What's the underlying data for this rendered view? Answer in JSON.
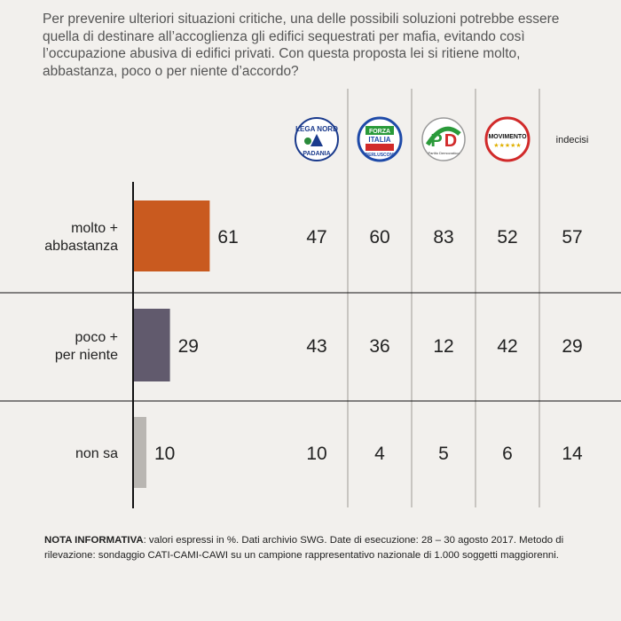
{
  "question": "Per prevenire ulteriori situazioni critiche, una delle possibili soluzioni potrebbe essere quella di destinare all’accoglienza gli edifici sequestrati per mafia, evitando così l’occupazione abusiva di edifici privati. Con questa proposta lei si ritiene molto, abbastanza, poco o per niente d’accordo?",
  "chart_data": {
    "type": "bar",
    "orientation": "horizontal",
    "categories": [
      "molto + abbastanza",
      "poco + per niente",
      "non sa"
    ],
    "values": [
      61,
      29,
      10
    ],
    "bar_colors": [
      "#c95a1f",
      "#615a6d",
      "#b9b6b2"
    ],
    "table": {
      "columns": [
        {
          "party": "Lega Nord",
          "logo": "lega-nord-logo",
          "logo_text": [
            "LEGA NORD",
            "PADANIA"
          ]
        },
        {
          "party": "Forza Italia",
          "logo": "forza-italia-logo",
          "logo_text": [
            "FORZA",
            "ITALIA",
            "BERLUSCONI"
          ]
        },
        {
          "party": "Partito Democratico",
          "logo": "pd-logo",
          "logo_text": [
            "PD",
            "Partito Democratico"
          ]
        },
        {
          "party": "Movimento 5 Stelle",
          "logo": "m5s-logo",
          "logo_text": [
            "MOVIMENTO",
            "★★★★★"
          ]
        },
        {
          "party": "indecisi",
          "logo": null,
          "label": "indecisi"
        }
      ],
      "rows": [
        [
          47,
          60,
          83,
          52,
          57
        ],
        [
          43,
          36,
          12,
          42,
          29
        ],
        [
          10,
          4,
          5,
          6,
          14
        ]
      ]
    }
  },
  "note": {
    "label": "NOTA INFORMATIVA",
    "text": ": valori espressi in %. Dati archivio SWG. Date di esecuzione: 28 – 30 agosto 2017. Metodo di rilevazione: sondaggio CATI-CAMI-CAWI su un campione rappresentativo nazionale di 1.000 soggetti maggiorenni."
  },
  "colors": {
    "background": "#f2f0ed",
    "text": "#222222",
    "question_text": "#555555",
    "grid": "#c8c5c1",
    "axis": "#111111"
  }
}
